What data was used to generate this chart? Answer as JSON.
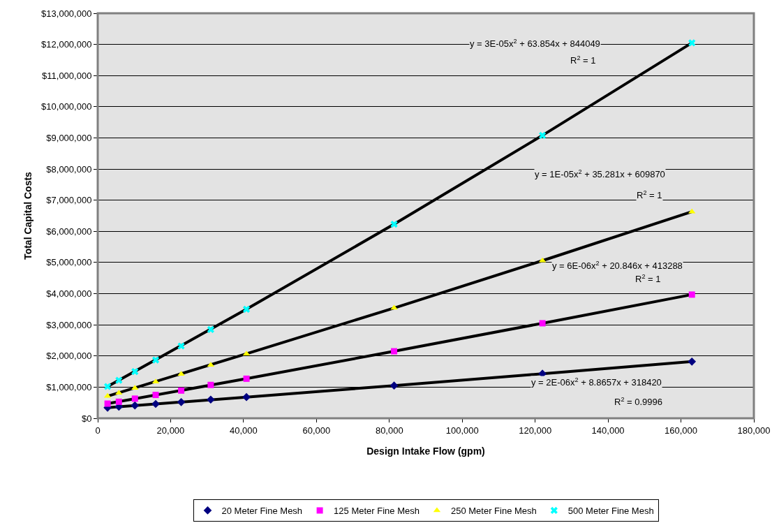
{
  "chart_data": {
    "type": "scatter",
    "xlabel": "Design Intake Flow (gpm)",
    "ylabel": "Total Capital Costs",
    "xlim": [
      0,
      180000
    ],
    "ylim": [
      0,
      13000000
    ],
    "xticks": [
      0,
      {
        "value": 20000,
        "label": "20,000"
      },
      {
        "value": 40000,
        "label": "40,000"
      },
      {
        "value": 60000,
        "label": "60,000"
      },
      {
        "value": 80000,
        "label": "80,000"
      },
      {
        "value": 100000,
        "label": "100,000"
      },
      {
        "value": 120000,
        "label": "120,000"
      },
      {
        "value": 140000,
        "label": "140,000"
      },
      {
        "value": 160000,
        "label": "160,000"
      },
      {
        "value": 180000,
        "label": "180,000"
      }
    ],
    "yticks": [
      {
        "value": 0,
        "label": "$0"
      },
      {
        "value": 1000000,
        "label": "$1,000,000"
      },
      {
        "value": 2000000,
        "label": "$2,000,000"
      },
      {
        "value": 3000000,
        "label": "$3,000,000"
      },
      {
        "value": 4000000,
        "label": "$4,000,000"
      },
      {
        "value": 5000000,
        "label": "$5,000,000"
      },
      {
        "value": 6000000,
        "label": "$6,000,000"
      },
      {
        "value": 7000000,
        "label": "$7,000,000"
      },
      {
        "value": 8000000,
        "label": "$8,000,000"
      },
      {
        "value": 9000000,
        "label": "$9,000,000"
      },
      {
        "value": 10000000,
        "label": "$10,000,000"
      },
      {
        "value": 11000000,
        "label": "$11,000,000"
      },
      {
        "value": 12000000,
        "label": "$12,000,000"
      },
      {
        "value": 13000000,
        "label": "$13,000,000"
      }
    ],
    "x": [
      2700,
      5800,
      10200,
      15900,
      22900,
      31000,
      40800,
      81300,
      122000,
      163000
    ],
    "grid": "y",
    "legend": "bottom",
    "series": [
      {
        "name": "20 Meter Fine Mesh",
        "color": "#000080",
        "marker": "diamond",
        "values": [
          340000,
          370000,
          410000,
          460000,
          520000,
          600000,
          680000,
          1050000,
          1430000,
          1820000
        ]
      },
      {
        "name": "125 Meter Fine Mesh",
        "color": "#ff00ff",
        "marker": "square",
        "values": [
          470000,
          530000,
          630000,
          750000,
          890000,
          1070000,
          1270000,
          2150000,
          3050000,
          3970000
        ]
      },
      {
        "name": "250 Meter Fine Mesh",
        "color": "#ffff00",
        "marker": "triangle",
        "values": [
          710000,
          810000,
          970000,
          1170000,
          1420000,
          1710000,
          2070000,
          3540000,
          5060000,
          6630000
        ]
      },
      {
        "name": "500 Meter Fine Mesh",
        "color": "#00ffff",
        "marker": "cross",
        "values": [
          1020000,
          1220000,
          1500000,
          1870000,
          2320000,
          2850000,
          3500000,
          6230000,
          9080000,
          12050000
        ]
      },
      {
        "type": "line",
        "color": "#000000",
        "marker": "none",
        "x": [
          2700,
          40800,
          81300,
          122000,
          163000
        ],
        "values": [
          340000,
          680000,
          1050000,
          1430000,
          1820000
        ]
      },
      {
        "type": "line",
        "color": "#000000",
        "marker": "none",
        "x": [
          2700,
          40800,
          81300,
          122000,
          163000
        ],
        "values": [
          470000,
          1270000,
          2150000,
          3050000,
          3970000
        ]
      },
      {
        "type": "line",
        "color": "#000000",
        "marker": "none",
        "x": [
          2700,
          40800,
          81300,
          122000,
          163000
        ],
        "values": [
          710000,
          2070000,
          3540000,
          5060000,
          6630000
        ]
      },
      {
        "type": "line",
        "color": "#000000",
        "marker": "none",
        "x": [
          2700,
          40800,
          81300,
          122000,
          163000
        ],
        "values": [
          1020000,
          3500000,
          6230000,
          9080000,
          12050000
        ]
      }
    ],
    "annotations": [
      "y = 3E-05x$^{2}$ + 63.854x + 844049",
      "R$^{2}$ = 1",
      "y = 1E-05x$^{2}$ + 35.281x + 609870",
      "R$^{2}$ = 1",
      "y = 6E-06x$^{2}$ + 20.846x + 413288",
      "R$^{2}$ = 1",
      "y = 2E-06x$^{2}$ + 8.8657x + 318420",
      "R$^{2}$ = 0.9996"
    ]
  }
}
